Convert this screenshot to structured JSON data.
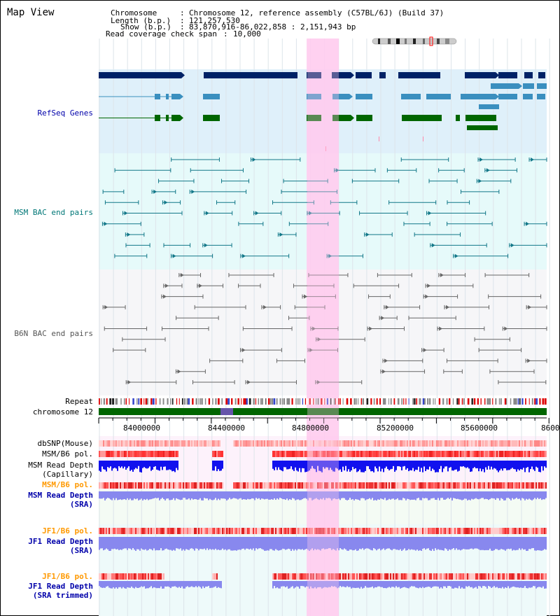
{
  "title": "Map View",
  "info": {
    "chromosome_key": "Chromosome",
    "chromosome_val": "Chromosome 12, reference assembly (C57BL/6J) (Build 37)",
    "length_key": "Length (b.p.)",
    "length_val": "121,257,530",
    "show_key": "Show (b.p.)",
    "show_val": "83,870,916-86,022,858 : 2,151,943 bp",
    "coverage_key": "Read coverage check span",
    "coverage_val": "10,000"
  },
  "colors": {
    "refseq_label": "#0000aa",
    "msm_label": "#007777",
    "b6n_label": "#555555",
    "orange_label": "#ff9900",
    "blue_label": "#0000aa",
    "highlight": "#ffccee",
    "refseq_bg": "#dff0fa",
    "msm_bg": "#e6fafa",
    "b6n_bg": "#f6f6f8",
    "gene_dark": "#002266",
    "gene_mid": "#3a8fbf",
    "gene_green": "#006600",
    "chrom_bar": "#006600"
  },
  "sections": {
    "refseq": "RefSeq Genes",
    "msm_bac": "MSM BAC end pairs",
    "b6n_bac": "B6N BAC end pairs"
  },
  "tracks": {
    "repeat": "Repeat",
    "chromosome": "chromosome 12",
    "dbsnp": "dbSNP(Mouse)",
    "msm_b6_pol_1": "MSM/B6 pol.",
    "msm_read_depth_cap_1": "MSM Read Depth",
    "msm_read_depth_cap_2": "(Capillary)",
    "msm_b6_pol_2": "MSM/B6 pol.",
    "msm_read_depth_sra_1": "MSM Read Depth",
    "msm_read_depth_sra_2": "(SRA)",
    "jf1_b6_pol_1": "JF1/B6 pol.",
    "jf1_read_depth_sra_1": "JF1 Read Depth",
    "jf1_read_depth_sra_2": "(SRA)",
    "jf1_b6_pol_2": "JF1/B6 pol.",
    "jf1_read_depth_trim_1": "JF1 Read Depth",
    "jf1_read_depth_trim_2": "(SRA trimmed)"
  },
  "ruler": {
    "ticks": [
      "84000000",
      "84400000",
      "84800000",
      "85200000",
      "85600000",
      "8600"
    ]
  },
  "icons": {
    "ideogram": "chromosome-ideogram-icon"
  }
}
